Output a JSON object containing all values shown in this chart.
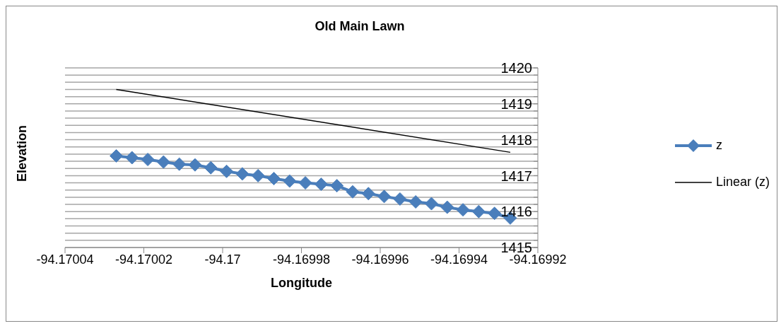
{
  "chart_data": {
    "type": "line",
    "title": "Old Main Lawn",
    "xlabel": "Longitude",
    "ylabel": "Elevation",
    "x": [
      -94.170027,
      -94.170023,
      -94.170019,
      -94.170015,
      -94.170011,
      -94.170007,
      -94.170003,
      -94.169999,
      -94.169995,
      -94.169991,
      -94.169987,
      -94.169983,
      -94.169979,
      -94.169975,
      -94.169971,
      -94.169967,
      -94.169963,
      -94.169959,
      -94.169955,
      -94.169951,
      -94.169947,
      -94.169943,
      -94.169939,
      -94.169935,
      -94.169931,
      -94.169927
    ],
    "series": [
      {
        "name": "z",
        "color": "#4a7ebb",
        "marker": "diamond",
        "values": [
          1417.55,
          1417.5,
          1417.45,
          1417.38,
          1417.32,
          1417.3,
          1417.22,
          1417.12,
          1417.05,
          1417.0,
          1416.92,
          1416.85,
          1416.8,
          1416.76,
          1416.72,
          1416.55,
          1416.5,
          1416.42,
          1416.35,
          1416.27,
          1416.22,
          1416.12,
          1416.05,
          1416.0,
          1415.95,
          1415.82
        ]
      },
      {
        "name": "Linear (z)",
        "color": "#000000",
        "marker": "none",
        "x": [
          -94.170027,
          -94.169927
        ],
        "values": [
          1419.4,
          1417.65
        ]
      }
    ],
    "xlim": [
      -94.17004,
      -94.16992
    ],
    "xticks": [
      -94.17004,
      -94.17002,
      -94.17,
      -94.16998,
      -94.16996,
      -94.16994,
      -94.16992
    ],
    "ylim": [
      1415,
      1420
    ],
    "yticks": [
      1415,
      {
        "value": 1415.2,
        "label": null
      },
      {
        "value": 1415.4,
        "label": null
      },
      {
        "value": 1415.6,
        "label": null
      },
      {
        "value": 1415.8,
        "label": null
      },
      1416,
      {
        "value": 1416.2,
        "label": null
      },
      {
        "value": 1416.4,
        "label": null
      },
      {
        "value": 1416.6,
        "label": null
      },
      {
        "value": 1416.8,
        "label": null
      },
      1417,
      {
        "value": 1417.2,
        "label": null
      },
      {
        "value": 1417.4,
        "label": null
      },
      {
        "value": 1417.6,
        "label": null
      },
      {
        "value": 1417.8,
        "label": null
      },
      1418,
      {
        "value": 1418.2,
        "label": null
      },
      {
        "value": 1418.4,
        "label": null
      },
      {
        "value": 1418.6,
        "label": null
      },
      {
        "value": 1418.8,
        "label": null
      },
      1419,
      {
        "value": 1419.2,
        "label": null
      },
      {
        "value": 1419.4,
        "label": null
      },
      {
        "value": 1419.6,
        "label": null
      },
      {
        "value": 1419.8,
        "label": null
      },
      1420
    ],
    "grid": "y",
    "legend": "right",
    "line_style": "solid"
  }
}
